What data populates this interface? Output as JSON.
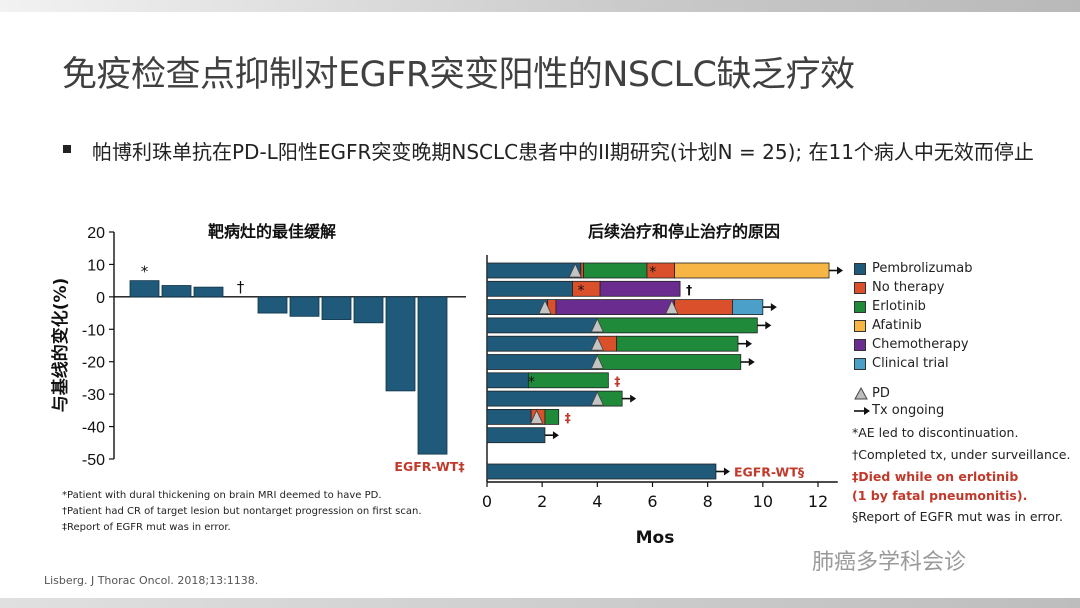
{
  "slide": {
    "title": "免疫检查点抑制对EGFR突变阳性的NSCLC缺乏疗效",
    "bullet": "帕博利珠单抗在PD-L阳性EGFR突变晚期NSCLC患者中的II期研究(计划N  = 25); 在11个病人中无效而停止",
    "source": "Lisberg. J Thorac Oncol. 2018;13:1138.",
    "watermark": "肺癌多学科会诊"
  },
  "colors": {
    "bar": "#1f5a7a",
    "Pembrolizumab": "#1f5a7a",
    "No therapy": "#d9502a",
    "Erlotinib": "#1f8a3a",
    "Afatinib": "#f6b545",
    "Chemotherapy": "#6a2d8f",
    "Clinical trial": "#4aa0c8",
    "red_text": "#c0392b"
  },
  "chart_data": [
    {
      "type": "bar",
      "title": "靶病灶的最佳缓解",
      "ylabel": "与基线的变化(%)",
      "xlabel": "",
      "ylim": [
        -50,
        20
      ],
      "yticks": [
        20,
        10,
        0,
        -10,
        -20,
        -30,
        -40,
        -50
      ],
      "values": [
        5,
        3.5,
        3,
        0,
        -5,
        -6,
        -7,
        -8,
        -29,
        -48.5
      ],
      "marks": [
        "*",
        "",
        "",
        "†",
        "",
        "",
        "",
        "",
        "",
        ""
      ],
      "annotation": "EGFR-WT‡",
      "footnotes": [
        "*Patient with dural thickening on brain MRI deemed to have PD.",
        "†Patient had CR of target lesion but nontarget progression on first scan.",
        "‡Report of EGFR mut was in error."
      ]
    },
    {
      "type": "bar",
      "orientation": "horizontal-stacked",
      "title": "后续治疗和停止治疗的原因",
      "xlabel": "Mos",
      "xlim": [
        0,
        12.5
      ],
      "xticks": [
        0,
        2,
        4,
        6,
        8,
        10,
        12
      ],
      "swimmers": [
        {
          "segments": [
            [
              "Pembrolizumab",
              0,
              3.4
            ],
            [
              "No therapy",
              3.4,
              3.5
            ],
            [
              "Erlotinib",
              3.5,
              5.8
            ],
            [
              "No therapy",
              5.8,
              6.8
            ],
            [
              "Afatinib",
              6.8,
              12.4
            ]
          ],
          "pd": 3.2,
          "marker": "*",
          "marker_at": 5.9,
          "ongoing": true,
          "suffix": ""
        },
        {
          "segments": [
            [
              "Pembrolizumab",
              0,
              3.1
            ],
            [
              "No therapy",
              3.1,
              4.1
            ],
            [
              "Chemotherapy",
              4.1,
              7.0
            ]
          ],
          "pd": null,
          "marker": "*",
          "marker_at": 3.3,
          "ongoing": false,
          "suffix": "†"
        },
        {
          "segments": [
            [
              "Pembrolizumab",
              0,
              2.2
            ],
            [
              "No therapy",
              2.2,
              2.5
            ],
            [
              "Chemotherapy",
              2.5,
              6.8
            ],
            [
              "No therapy",
              6.8,
              8.9
            ],
            [
              "Clinical trial",
              8.9,
              10.0
            ]
          ],
          "pd": 2.1,
          "pd2": 6.7,
          "ongoing": true,
          "suffix": ""
        },
        {
          "segments": [
            [
              "Pembrolizumab",
              0,
              4.0
            ],
            [
              "Erlotinib",
              4.0,
              9.8
            ]
          ],
          "pd": 4.0,
          "ongoing": true,
          "suffix": ""
        },
        {
          "segments": [
            [
              "Pembrolizumab",
              0,
              4.0
            ],
            [
              "No therapy",
              4.0,
              4.7
            ],
            [
              "Erlotinib",
              4.7,
              9.1
            ]
          ],
          "pd": 4.0,
          "ongoing": true,
          "suffix": ""
        },
        {
          "segments": [
            [
              "Pembrolizumab",
              0,
              4.0
            ],
            [
              "Erlotinib",
              4.0,
              9.2
            ]
          ],
          "pd": 4.0,
          "ongoing": true,
          "suffix": ""
        },
        {
          "segments": [
            [
              "Pembrolizumab",
              0,
              1.5
            ],
            [
              "Erlotinib",
              1.5,
              4.4
            ]
          ],
          "pd": null,
          "marker": "*",
          "marker_at": 1.5,
          "ongoing": false,
          "suffix": "‡"
        },
        {
          "segments": [
            [
              "Pembrolizumab",
              0,
              4.0
            ],
            [
              "Erlotinib",
              4.0,
              4.9
            ]
          ],
          "pd": 4.0,
          "ongoing": true,
          "suffix": ""
        },
        {
          "segments": [
            [
              "Pembrolizumab",
              0,
              1.6
            ],
            [
              "No therapy",
              1.6,
              2.1
            ],
            [
              "Erlotinib",
              2.1,
              2.6
            ]
          ],
          "pd": 1.8,
          "ongoing": false,
          "suffix": "‡"
        },
        {
          "segments": [
            [
              "Pembrolizumab",
              0,
              2.1
            ]
          ],
          "pd": null,
          "ongoing": true,
          "suffix": ""
        },
        {
          "segments": [
            [
              "Pembrolizumab",
              0,
              8.3
            ]
          ],
          "pd": null,
          "ongoing": true,
          "suffix": "",
          "separate": true,
          "annotation": "EGFR-WT§"
        }
      ],
      "legend": [
        "Pembrolizumab",
        "No therapy",
        "Erlotinib",
        "Afatinib",
        "Chemotherapy",
        "Clinical trial"
      ],
      "legend_symbols": [
        "PD",
        "Tx ongoing"
      ],
      "notes": [
        "*AE led to discontinuation.",
        "†Completed tx, under surveillance.",
        "‡Died while on erlotinib",
        "(1 by fatal pneumonitis).",
        "§Report of EGFR mut was in error."
      ]
    }
  ]
}
